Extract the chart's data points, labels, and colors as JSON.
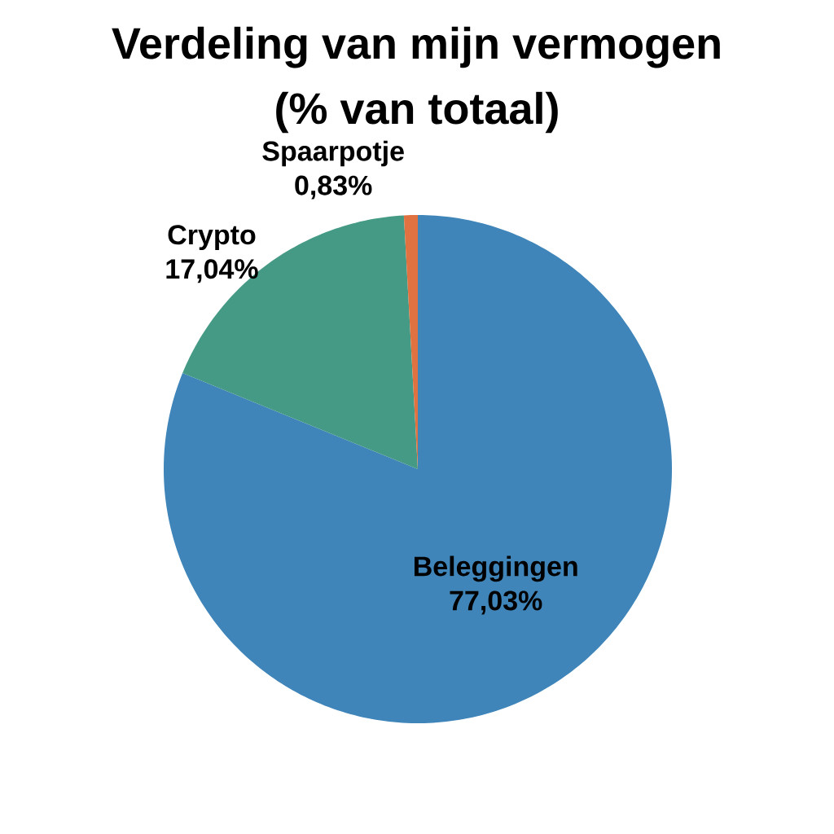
{
  "chart_data": {
    "type": "pie",
    "title": "Verdeling van mijn vermogen (% van totaal)",
    "categories": [
      "Beleggingen",
      "Crypto",
      "Spaarpotje"
    ],
    "values": [
      77.03,
      17.04,
      0.83
    ],
    "value_labels": [
      "77,03%",
      "17,04%",
      "0,83%"
    ],
    "colors": [
      "#3f85b9",
      "#449a84",
      "#e07140"
    ]
  }
}
